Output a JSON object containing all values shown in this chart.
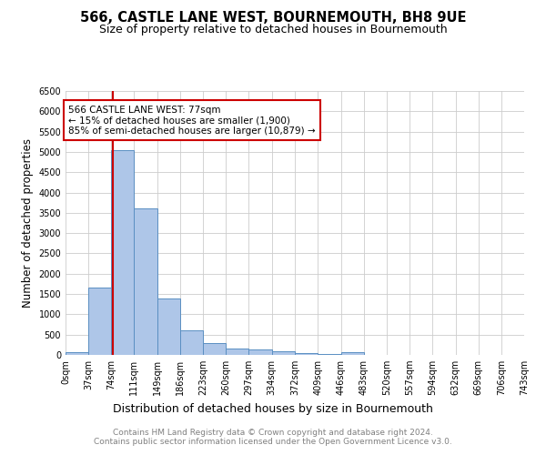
{
  "title": "566, CASTLE LANE WEST, BOURNEMOUTH, BH8 9UE",
  "subtitle": "Size of property relative to detached houses in Bournemouth",
  "xlabel": "Distribution of detached houses by size in Bournemouth",
  "ylabel": "Number of detached properties",
  "footer_line1": "Contains HM Land Registry data © Crown copyright and database right 2024.",
  "footer_line2": "Contains public sector information licensed under the Open Government Licence v3.0.",
  "bin_edges": [
    0,
    37,
    74,
    111,
    149,
    186,
    223,
    260,
    297,
    334,
    372,
    409,
    446,
    483,
    520,
    557,
    594,
    632,
    669,
    706,
    743
  ],
  "bar_heights": [
    75,
    1650,
    5050,
    3600,
    1400,
    600,
    300,
    150,
    130,
    100,
    50,
    30,
    60,
    0,
    0,
    0,
    0,
    0,
    0,
    0
  ],
  "bar_color": "#aec6e8",
  "bar_edge_color": "#5a8fc2",
  "grid_color": "#cccccc",
  "property_size": 77,
  "red_line_color": "#cc0000",
  "annotation_line1": "566 CASTLE LANE WEST: 77sqm",
  "annotation_line2": "← 15% of detached houses are smaller (1,900)",
  "annotation_line3": "85% of semi-detached houses are larger (10,879) →",
  "annotation_box_color": "#cc0000",
  "ylim": [
    0,
    6500
  ],
  "yticks": [
    0,
    500,
    1000,
    1500,
    2000,
    2500,
    3000,
    3500,
    4000,
    4500,
    5000,
    5500,
    6000,
    6500
  ],
  "background_color": "#ffffff",
  "title_fontsize": 10.5,
  "subtitle_fontsize": 9,
  "tick_label_fontsize": 7,
  "ylabel_fontsize": 8.5,
  "xlabel_fontsize": 9,
  "footer_fontsize": 6.5,
  "annotation_fontsize": 7.5
}
